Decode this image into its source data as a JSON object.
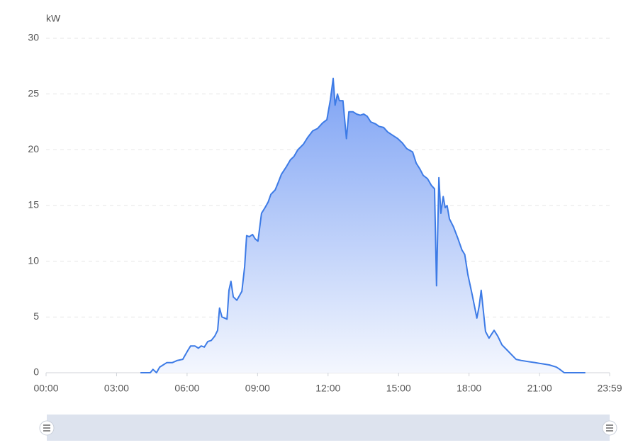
{
  "chart_data": {
    "type": "area",
    "y_unit": "kW",
    "color": "#3d7be6",
    "xlim": [
      0,
      1439
    ],
    "xticks": [
      {
        "value": 0,
        "label": "00:00"
      },
      {
        "value": 180,
        "label": "03:00"
      },
      {
        "value": 360,
        "label": "06:00"
      },
      {
        "value": 540,
        "label": "09:00"
      },
      {
        "value": 720,
        "label": "12:00"
      },
      {
        "value": 900,
        "label": "15:00"
      },
      {
        "value": 1080,
        "label": "18:00"
      },
      {
        "value": 1260,
        "label": "21:00"
      },
      {
        "value": 1439,
        "label": "23:59"
      }
    ],
    "ylim": [
      0,
      30
    ],
    "yticks": [
      0,
      5,
      10,
      15,
      20,
      25,
      30
    ],
    "grid": true,
    "x": [
      241,
      266,
      273,
      282,
      290,
      308,
      322,
      335,
      349,
      362,
      369,
      380,
      389,
      396,
      404,
      413,
      422,
      431,
      438,
      443,
      449,
      456,
      462,
      467,
      472,
      478,
      487,
      492,
      500,
      507,
      512,
      519,
      527,
      534,
      541,
      550,
      559,
      567,
      574,
      585,
      592,
      601,
      614,
      624,
      633,
      643,
      657,
      668,
      681,
      693,
      706,
      717,
      726,
      733,
      738,
      744,
      749,
      758,
      767,
      773,
      784,
      793,
      802,
      811,
      820,
      829,
      842,
      850,
      862,
      872,
      885,
      898,
      910,
      921,
      936,
      945,
      954,
      963,
      974,
      984,
      992,
      997,
      1003,
      1008,
      1014,
      1019,
      1024,
      1030,
      1040,
      1051,
      1062,
      1069,
      1077,
      1088,
      1100,
      1106,
      1111,
      1122,
      1131,
      1144,
      1153,
      1164,
      1178,
      1189,
      1200,
      1213,
      1231,
      1249,
      1267,
      1285,
      1303,
      1312,
      1323,
      1377
    ],
    "values": [
      0,
      0,
      0.3,
      0,
      0.5,
      0.9,
      0.9,
      1.1,
      1.2,
      2.0,
      2.4,
      2.4,
      2.2,
      2.4,
      2.3,
      2.8,
      2.9,
      3.3,
      3.8,
      5.8,
      5.0,
      4.9,
      4.8,
      7.4,
      8.2,
      6.8,
      6.5,
      6.8,
      7.3,
      9.5,
      12.3,
      12.2,
      12.4,
      12.0,
      11.8,
      14.3,
      14.8,
      15.3,
      16.0,
      16.4,
      17.0,
      17.8,
      18.5,
      19.1,
      19.4,
      20.0,
      20.5,
      21.1,
      21.7,
      21.9,
      22.4,
      22.7,
      24.5,
      26.4,
      24.0,
      25.0,
      24.4,
      24.4,
      21.0,
      23.4,
      23.4,
      23.2,
      23.1,
      23.2,
      23.0,
      22.5,
      22.3,
      22.1,
      22.0,
      21.6,
      21.3,
      21.0,
      20.6,
      20.1,
      19.8,
      18.8,
      18.3,
      17.7,
      17.4,
      16.8,
      16.5,
      7.8,
      17.5,
      14.3,
      15.8,
      14.8,
      15.0,
      13.8,
      13.1,
      12.1,
      11.0,
      10.6,
      8.8,
      7.0,
      4.9,
      6.0,
      7.4,
      3.7,
      3.1,
      3.8,
      3.3,
      2.5,
      2.0,
      1.6,
      1.2,
      1.1,
      1.0,
      0.9,
      0.8,
      0.7,
      0.5,
      0.3,
      0,
      0
    ]
  }
}
